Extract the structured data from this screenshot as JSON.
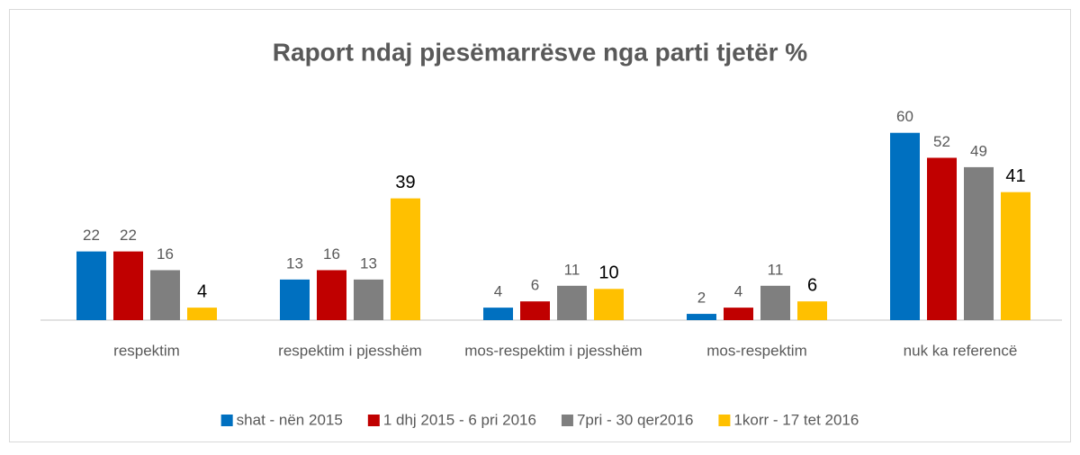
{
  "chart_data": {
    "type": "bar",
    "title": "Raport ndaj pjesëmarrësve nga parti tjetër %",
    "categories": [
      "respektim",
      "respektim i pjesshëm",
      "mos-respektim i pjesshëm",
      "mos-respektim",
      "nuk ka referencë"
    ],
    "series": [
      {
        "name": "shat - nën 2015",
        "color": "#0070c0",
        "values": [
          22,
          13,
          4,
          2,
          60
        ]
      },
      {
        "name": "1 dhj 2015 - 6 pri 2016",
        "color": "#c00000",
        "values": [
          22,
          16,
          6,
          4,
          52
        ]
      },
      {
        "name": "7pri - 30 qer2016",
        "color": "#7f7f7f",
        "values": [
          16,
          13,
          11,
          11,
          49
        ]
      },
      {
        "name": "1korr - 17 tet 2016",
        "color": "#ffc000",
        "values": [
          4,
          39,
          10,
          6,
          41
        ]
      }
    ],
    "ylim": [
      0,
      70
    ],
    "legend": "bottom"
  }
}
